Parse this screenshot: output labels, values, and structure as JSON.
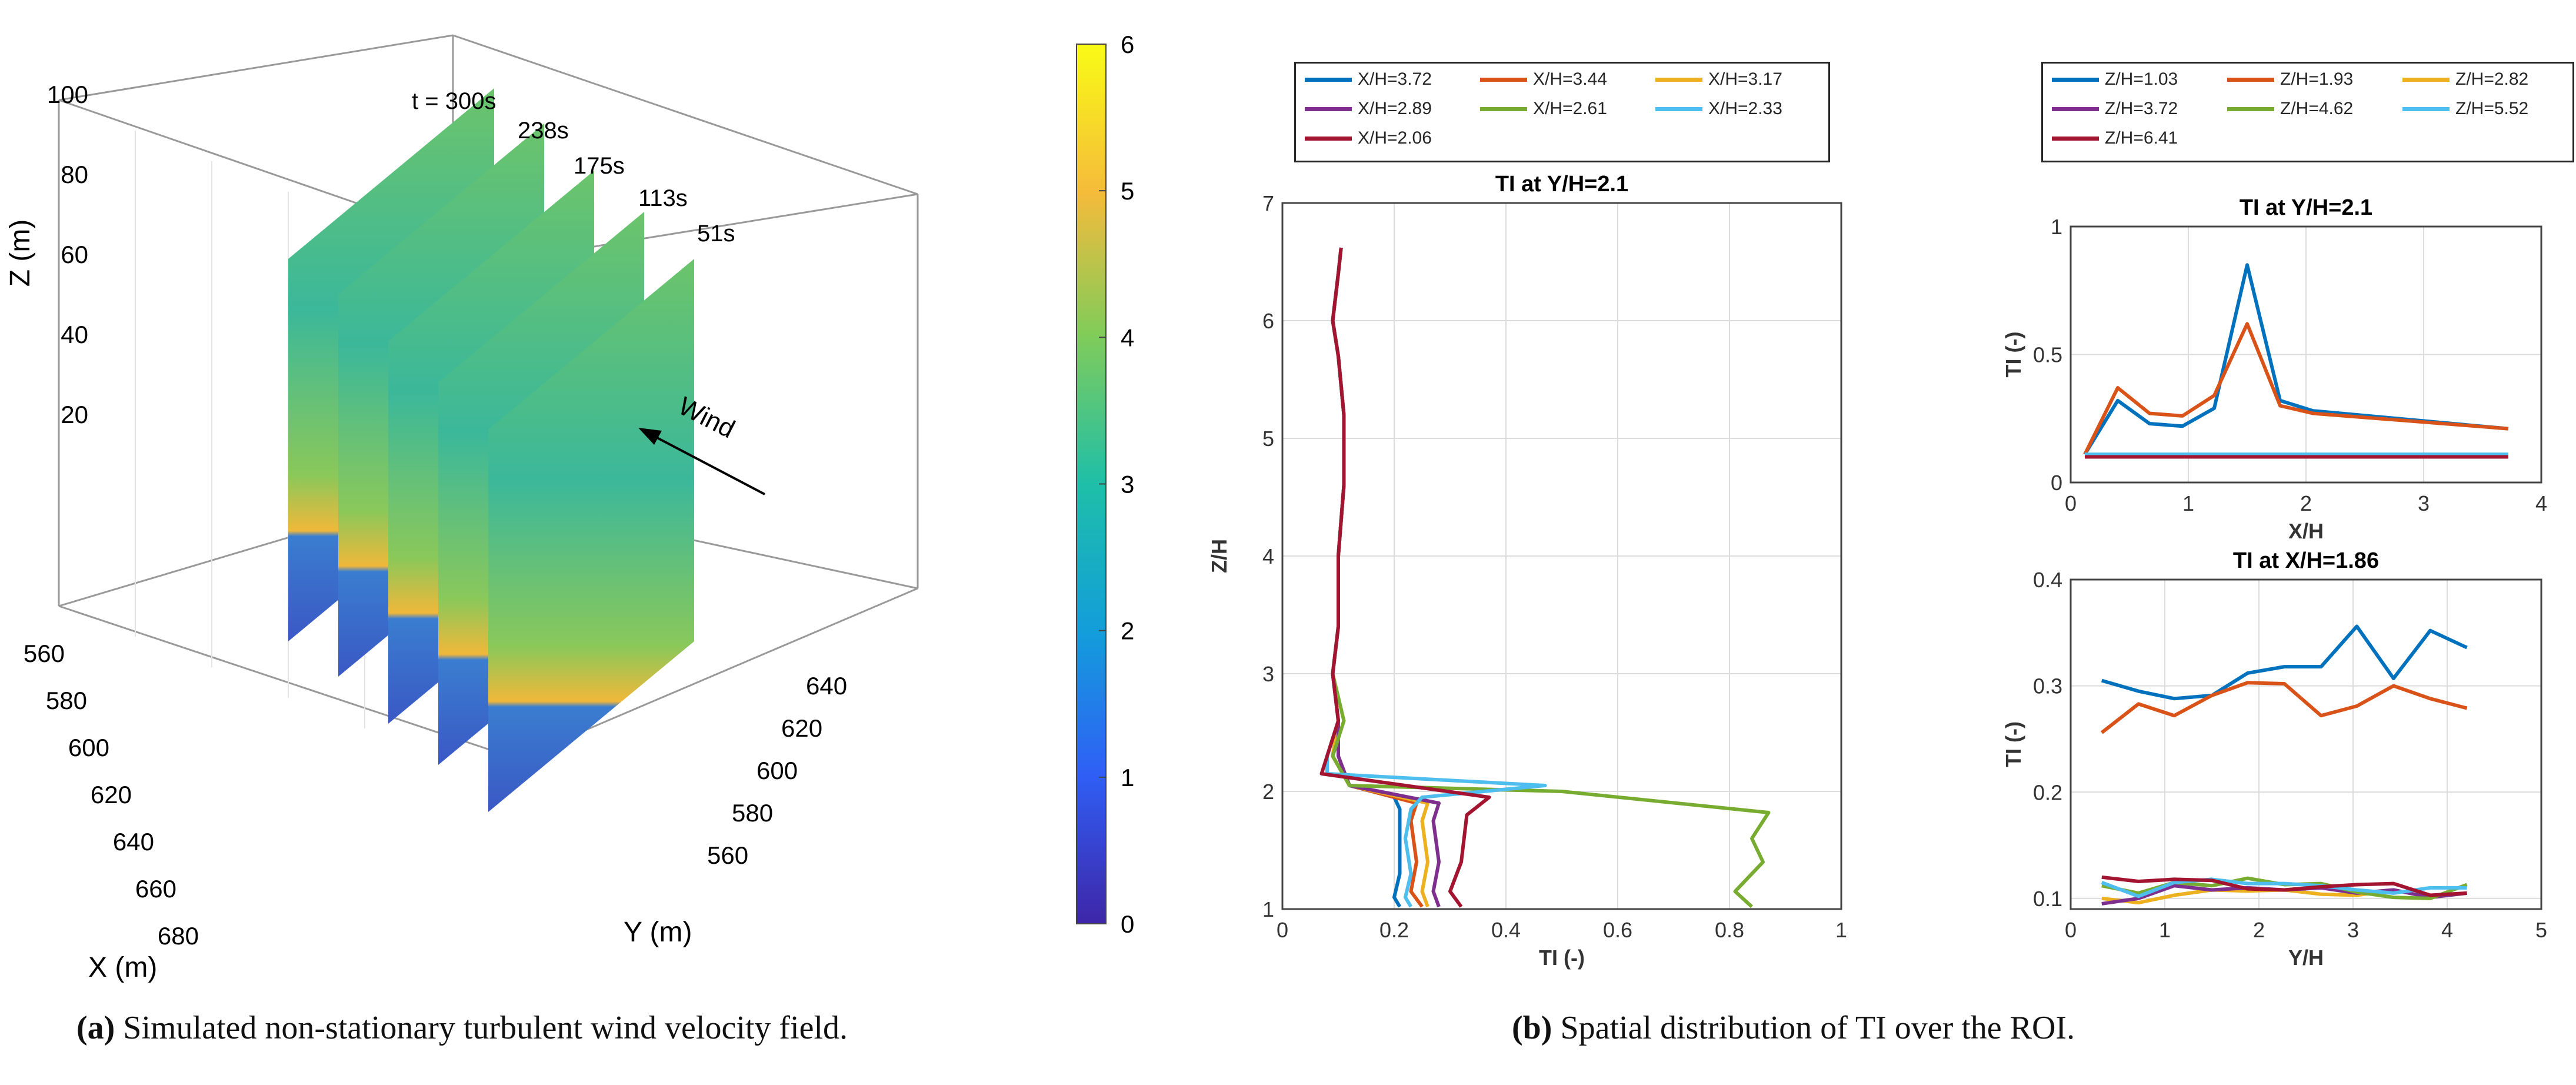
{
  "captions": {
    "a_label": "(a)",
    "a_text": " Simulated non-stationary turbulent wind velocity field.",
    "b_label": "(b)",
    "b_text": " Spatial distribution of TI over the ROI."
  },
  "panel_a": {
    "z_label": "Z (m)",
    "x_label": "X (m)",
    "y_label": "Y (m)",
    "z_ticks": [
      "100",
      "80",
      "60",
      "40",
      "20"
    ],
    "x_ticks": [
      "560",
      "580",
      "600",
      "620",
      "640",
      "660",
      "680"
    ],
    "y_ticks": [
      "640",
      "620",
      "600",
      "580",
      "560"
    ],
    "time_labels": [
      "t = 300s",
      "238s",
      "175s",
      "113s",
      "51s"
    ],
    "wind_label": "Wind",
    "colorbar_ticks": [
      "6",
      "5",
      "4",
      "3",
      "2",
      "1",
      "0"
    ],
    "colorbar_range": [
      0,
      6
    ]
  },
  "legend1": [
    "X/H=3.72",
    "X/H=3.44",
    "X/H=3.17",
    "X/H=2.89",
    "X/H=2.61",
    "X/H=2.33",
    "X/H=2.06"
  ],
  "legend2": [
    "Z/H=1.03",
    "Z/H=1.93",
    "Z/H=2.82",
    "Z/H=3.72",
    "Z/H=4.62",
    "Z/H=5.52",
    "Z/H=6.41"
  ],
  "colors": [
    "#0072BD",
    "#D95319",
    "#EDB120",
    "#7E2F8E",
    "#77AC30",
    "#4DBEEE",
    "#A2142F"
  ],
  "chart_data": [
    {
      "type": "line",
      "title": "TI at Y/H=2.1",
      "xlabel": "TI (-)",
      "ylabel": "Z/H",
      "xlim": [
        0,
        1
      ],
      "ylim": [
        1,
        7
      ],
      "xticks": [
        "0",
        "0.2",
        "0.4",
        "0.6",
        "0.8",
        "1"
      ],
      "yticks": [
        "1",
        "2",
        "3",
        "4",
        "5",
        "6",
        "7"
      ],
      "grid": true,
      "series": [
        {
          "name": "X/H=3.72",
          "ti": [
            0.105,
            0.1,
            0.09,
            0.1,
            0.11,
            0.11,
            0.1,
            0.1,
            0.09,
            0.1,
            0.09,
            0.12,
            0.2,
            0.21,
            0.21,
            0.21,
            0.2,
            0.21
          ],
          "zh": [
            6.62,
            6.4,
            6.0,
            5.7,
            5.2,
            4.6,
            4.0,
            3.4,
            3.0,
            2.6,
            2.3,
            2.05,
            1.95,
            1.85,
            1.5,
            1.3,
            1.1,
            1.02
          ]
        },
        {
          "name": "X/H=3.44",
          "ti": [
            0.105,
            0.1,
            0.09,
            0.1,
            0.11,
            0.11,
            0.1,
            0.1,
            0.09,
            0.1,
            0.09,
            0.12,
            0.24,
            0.23,
            0.24,
            0.23,
            0.25
          ],
          "zh": [
            6.62,
            6.4,
            6.0,
            5.7,
            5.2,
            4.6,
            4.0,
            3.4,
            3.0,
            2.6,
            2.3,
            2.05,
            1.9,
            1.75,
            1.4,
            1.15,
            1.02
          ]
        },
        {
          "name": "X/H=3.17",
          "ti": [
            0.105,
            0.1,
            0.09,
            0.1,
            0.11,
            0.11,
            0.1,
            0.1,
            0.09,
            0.1,
            0.09,
            0.12,
            0.26,
            0.25,
            0.26,
            0.25,
            0.26
          ],
          "zh": [
            6.62,
            6.4,
            6.0,
            5.7,
            5.2,
            4.6,
            4.0,
            3.4,
            3.0,
            2.6,
            2.3,
            2.05,
            1.9,
            1.75,
            1.4,
            1.15,
            1.02
          ]
        },
        {
          "name": "X/H=2.89",
          "ti": [
            0.105,
            0.1,
            0.09,
            0.1,
            0.11,
            0.11,
            0.1,
            0.1,
            0.09,
            0.1,
            0.1,
            0.12,
            0.28,
            0.27,
            0.28,
            0.27,
            0.28
          ],
          "zh": [
            6.62,
            6.4,
            6.0,
            5.7,
            5.2,
            4.6,
            4.0,
            3.4,
            3.0,
            2.6,
            2.3,
            2.05,
            1.9,
            1.75,
            1.4,
            1.15,
            1.02
          ]
        },
        {
          "name": "X/H=2.61",
          "ti": [
            0.105,
            0.1,
            0.09,
            0.1,
            0.11,
            0.11,
            0.1,
            0.1,
            0.09,
            0.11,
            0.09,
            0.12,
            0.5,
            0.87,
            0.84,
            0.86,
            0.81,
            0.84
          ],
          "zh": [
            6.62,
            6.4,
            6.0,
            5.7,
            5.2,
            4.6,
            4.0,
            3.4,
            3.0,
            2.6,
            2.3,
            2.05,
            2.0,
            1.82,
            1.6,
            1.4,
            1.15,
            1.02
          ]
        },
        {
          "name": "X/H=2.33",
          "ti": [
            0.105,
            0.1,
            0.09,
            0.1,
            0.11,
            0.11,
            0.1,
            0.1,
            0.09,
            0.1,
            0.08,
            0.08,
            0.47,
            0.25,
            0.23,
            0.22,
            0.23,
            0.22,
            0.23
          ],
          "zh": [
            6.62,
            6.4,
            6.0,
            5.7,
            5.2,
            4.6,
            4.0,
            3.4,
            3.0,
            2.6,
            2.3,
            2.15,
            2.05,
            1.95,
            1.85,
            1.6,
            1.3,
            1.1,
            1.02
          ]
        },
        {
          "name": "X/H=2.06",
          "ti": [
            0.105,
            0.1,
            0.09,
            0.1,
            0.11,
            0.11,
            0.1,
            0.1,
            0.09,
            0.1,
            0.07,
            0.37,
            0.33,
            0.32,
            0.3,
            0.32
          ],
          "zh": [
            6.62,
            6.4,
            6.0,
            5.7,
            5.2,
            4.6,
            4.0,
            3.4,
            3.0,
            2.6,
            2.15,
            1.95,
            1.8,
            1.4,
            1.15,
            1.02
          ]
        }
      ]
    },
    {
      "type": "line",
      "title": "TI at Y/H=2.1",
      "xlabel": "X/H",
      "ylabel": "TI (-)",
      "xlim": [
        0,
        4
      ],
      "ylim": [
        0,
        1
      ],
      "xticks": [
        "0",
        "1",
        "2",
        "3",
        "4"
      ],
      "yticks": [
        "0",
        "0.5",
        "1"
      ],
      "grid": true,
      "x": [
        0.12,
        0.4,
        0.67,
        0.95,
        1.22,
        1.5,
        1.78,
        2.06,
        3.72
      ],
      "series": [
        {
          "name": "Z/H=1.03",
          "values": [
            0.11,
            0.32,
            0.23,
            0.22,
            0.29,
            0.85,
            0.32,
            0.28,
            0.21
          ]
        },
        {
          "name": "Z/H=1.93",
          "values": [
            0.11,
            0.37,
            0.27,
            0.26,
            0.34,
            0.62,
            0.3,
            0.27,
            0.21
          ]
        },
        {
          "name": "Z/H=2.82",
          "values": [
            0.1,
            0.1,
            0.1,
            0.1,
            0.1,
            0.1,
            0.1,
            0.1,
            0.1
          ]
        },
        {
          "name": "Z/H=3.72",
          "values": [
            0.1,
            0.1,
            0.1,
            0.1,
            0.1,
            0.1,
            0.1,
            0.1,
            0.1
          ]
        },
        {
          "name": "Z/H=4.62",
          "values": [
            0.1,
            0.1,
            0.1,
            0.1,
            0.1,
            0.1,
            0.1,
            0.1,
            0.1
          ]
        },
        {
          "name": "Z/H=5.52",
          "values": [
            0.11,
            0.11,
            0.11,
            0.11,
            0.11,
            0.11,
            0.11,
            0.11,
            0.11
          ]
        },
        {
          "name": "Z/H=6.41",
          "values": [
            0.1,
            0.1,
            0.1,
            0.1,
            0.1,
            0.1,
            0.1,
            0.1,
            0.1
          ]
        }
      ]
    },
    {
      "type": "line",
      "title": "TI at X/H=1.86",
      "xlabel": "Y/H",
      "ylabel": "TI (-)",
      "xlim": [
        0,
        5
      ],
      "ylim": [
        0.09,
        0.4
      ],
      "xticks": [
        "0",
        "1",
        "2",
        "3",
        "4",
        "5"
      ],
      "yticks": [
        "0.1",
        "0.2",
        "0.3",
        "0.4"
      ],
      "grid": true,
      "x": [
        0.33,
        0.72,
        1.1,
        1.5,
        1.88,
        2.27,
        2.66,
        3.04,
        3.43,
        3.82,
        4.21
      ],
      "series": [
        {
          "name": "Z/H=1.03",
          "values": [
            0.305,
            0.295,
            0.288,
            0.291,
            0.312,
            0.318,
            0.318,
            0.356,
            0.307,
            0.352,
            0.336
          ]
        },
        {
          "name": "Z/H=1.93",
          "values": [
            0.256,
            0.283,
            0.272,
            0.291,
            0.303,
            0.302,
            0.272,
            0.281,
            0.3,
            0.288,
            0.279
          ]
        },
        {
          "name": "Z/H=2.82",
          "values": [
            0.1,
            0.096,
            0.103,
            0.108,
            0.107,
            0.108,
            0.104,
            0.103,
            0.108,
            0.101,
            0.105
          ]
        },
        {
          "name": "Z/H=3.72",
          "values": [
            0.095,
            0.1,
            0.112,
            0.108,
            0.11,
            0.108,
            0.11,
            0.105,
            0.108,
            0.101,
            0.105
          ]
        },
        {
          "name": "Z/H=4.62",
          "values": [
            0.112,
            0.105,
            0.115,
            0.112,
            0.119,
            0.113,
            0.114,
            0.106,
            0.101,
            0.1,
            0.113
          ]
        },
        {
          "name": "Z/H=5.52",
          "values": [
            0.115,
            0.102,
            0.115,
            0.118,
            0.114,
            0.114,
            0.112,
            0.108,
            0.105,
            0.11,
            0.11
          ]
        },
        {
          "name": "Z/H=6.41",
          "values": [
            0.12,
            0.116,
            0.118,
            0.117,
            0.109,
            0.108,
            0.111,
            0.113,
            0.114,
            0.103,
            0.105
          ]
        }
      ]
    }
  ]
}
